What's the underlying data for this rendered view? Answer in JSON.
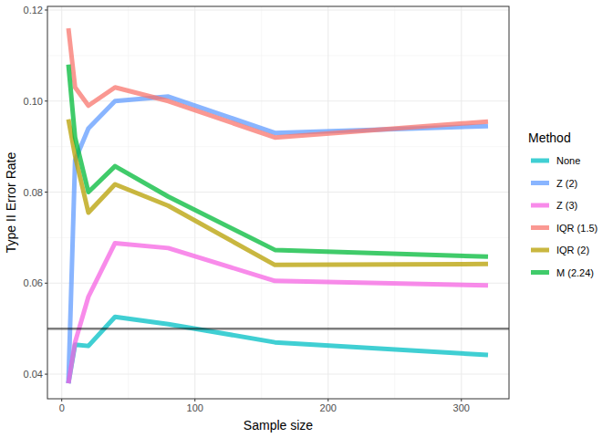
{
  "chart_data": {
    "type": "line",
    "x_label": "Sample size",
    "y_label": "Type II Error Rate",
    "legend_title": "Method",
    "x": [
      5,
      10,
      20,
      40,
      80,
      160,
      320
    ],
    "series": [
      {
        "name": "None",
        "color": "#00BFC4",
        "values": [
          0.038,
          0.0465,
          0.0462,
          0.0526,
          0.051,
          0.047,
          0.0442
        ]
      },
      {
        "name": "Z (2)",
        "color": "#619CFF",
        "values": [
          0.038,
          0.087,
          0.094,
          0.1,
          0.101,
          0.093,
          0.0945
        ]
      },
      {
        "name": "Z (3)",
        "color": "#F564E3",
        "values": [
          0.038,
          0.047,
          0.057,
          0.0688,
          0.0677,
          0.0605,
          0.0595
        ]
      },
      {
        "name": "IQR (1.5)",
        "color": "#F8766D",
        "values": [
          0.116,
          0.103,
          0.099,
          0.103,
          0.1,
          0.092,
          0.0955
        ]
      },
      {
        "name": "IQR (2)",
        "color": "#B79F00",
        "values": [
          0.096,
          0.088,
          0.0755,
          0.0817,
          0.077,
          0.064,
          0.0642
        ]
      },
      {
        "name": "M (2.24)",
        "color": "#00BA38",
        "values": [
          0.108,
          0.092,
          0.08,
          0.0857,
          0.079,
          0.0673,
          0.0658
        ]
      }
    ],
    "hlines": [
      0.05
    ],
    "xlim": [
      -10.75,
      335.75
    ],
    "ylim": [
      0.0346,
      0.1208
    ],
    "xticks": [
      0,
      100,
      200,
      300
    ],
    "yticks": [
      {
        "value": 0.04,
        "label": "0.04"
      },
      {
        "value": 0.06,
        "label": "0.06"
      },
      {
        "value": 0.08,
        "label": "0.08"
      },
      {
        "value": 0.1,
        "label": "0.10"
      },
      {
        "value": 0.12,
        "label": "0.12"
      }
    ],
    "grid": true,
    "legend": "right"
  }
}
